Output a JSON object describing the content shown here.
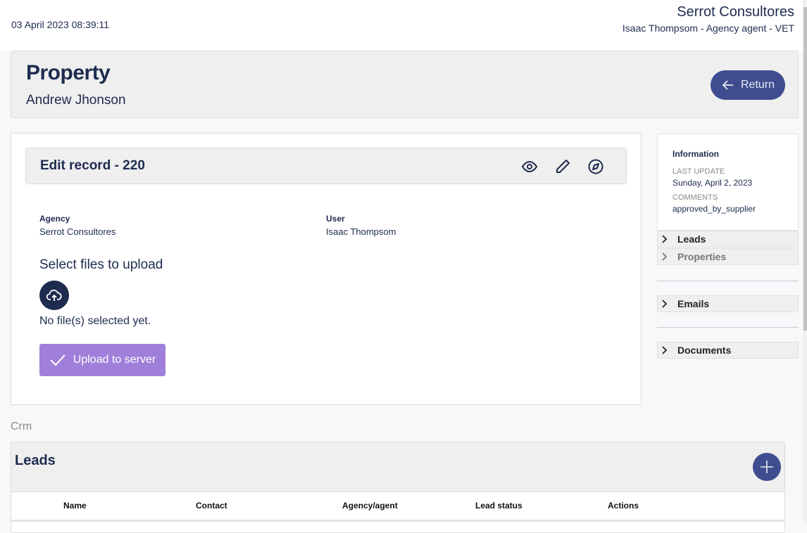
{
  "header": {
    "datetime": "03 April 2023 08:39:11",
    "organization": "Serrot Consultores",
    "user_line": "Isaac Thompsom - Agency agent - VET"
  },
  "page": {
    "title": "Property",
    "subtitle": "Andrew Jhonson",
    "return_label": "Return"
  },
  "record": {
    "title": "Edit record - 220",
    "icons": [
      "eye-icon",
      "pencil-icon",
      "compass-icon"
    ],
    "agency_label": "Agency",
    "agency_value": "Serrot Consultores",
    "user_label": "User",
    "user_value": "Isaac Thompsom"
  },
  "upload": {
    "title": "Select files to upload",
    "status": "No file(s) selected yet.",
    "button": "Upload to server"
  },
  "sidebar": {
    "info_title": "Information",
    "last_update_label": "LAST UPDATE",
    "last_update": "Sunday, April 2, 2023",
    "comments_label": "COMMENTS",
    "comments": "approved_by_supplier",
    "sections": [
      "Leads",
      "Properties",
      "Emails",
      "Documents"
    ]
  },
  "crm": {
    "label": "Crm",
    "leads_title": "Leads",
    "columns": [
      "Name",
      "Contact",
      "Agency/agent",
      "Lead status",
      "Actions"
    ]
  },
  "colors": {
    "primary": "#3f4d90",
    "upload_button": "#a07fda",
    "text": "#1d2b4f"
  }
}
